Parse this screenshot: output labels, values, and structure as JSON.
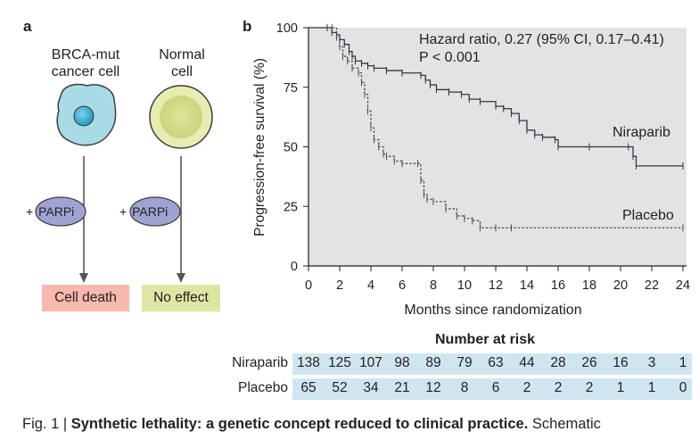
{
  "panel_a": {
    "letter": "a",
    "cells": [
      {
        "label_line1": "BRCA-mut",
        "label_line2": "cancer cell"
      },
      {
        "label_line1": "Normal",
        "label_line2": "cell"
      }
    ],
    "drug_prefix": "+",
    "drug": "PARPi",
    "outcomes": [
      "Cell death",
      "No effect"
    ],
    "colors": {
      "cancer_cell": "#a9dbe5",
      "normal_cell": "#e8ecb0",
      "drug": "#9fa3d3",
      "death": "#f7b9ae",
      "no_effect": "#dfe6a3"
    }
  },
  "panel_b": {
    "letter": "b",
    "annotation_line1": "Hazard ratio, 0.27 (95% CI, 0.17–0.41)",
    "annotation_line2": "P < 0.001"
  },
  "chart_data": {
    "type": "line",
    "xlabel": "Months since randomization",
    "ylabel": "Progression-free survival (%)",
    "xlim": [
      0,
      24
    ],
    "ylim": [
      0,
      100
    ],
    "xticks": [
      0,
      2,
      4,
      6,
      8,
      10,
      12,
      14,
      16,
      18,
      20,
      22,
      24
    ],
    "yticks": [
      0,
      25,
      50,
      75,
      100
    ],
    "background": "#e3e3e3",
    "series": [
      {
        "name": "Niraparib",
        "style": "solid",
        "points": [
          [
            0,
            100
          ],
          [
            1.2,
            100
          ],
          [
            1.5,
            98
          ],
          [
            1.8,
            97
          ],
          [
            2,
            95
          ],
          [
            2.3,
            93
          ],
          [
            2.6,
            90
          ],
          [
            2.8,
            88
          ],
          [
            3,
            86
          ],
          [
            3.4,
            85
          ],
          [
            3.8,
            84
          ],
          [
            4.2,
            83
          ],
          [
            5,
            82
          ],
          [
            6,
            81
          ],
          [
            7.2,
            80
          ],
          [
            7.5,
            78
          ],
          [
            7.8,
            76
          ],
          [
            8.2,
            74
          ],
          [
            9,
            73
          ],
          [
            9.8,
            72
          ],
          [
            10.3,
            70
          ],
          [
            11,
            69
          ],
          [
            12,
            67
          ],
          [
            12.5,
            66
          ],
          [
            13,
            64
          ],
          [
            13.5,
            61
          ],
          [
            14,
            57
          ],
          [
            14.5,
            55
          ],
          [
            15,
            54
          ],
          [
            15.8,
            53
          ],
          [
            16,
            50
          ],
          [
            18,
            50
          ],
          [
            20.5,
            50
          ],
          [
            20.8,
            46
          ],
          [
            21,
            42
          ],
          [
            24,
            42
          ]
        ]
      },
      {
        "name": "Placebo",
        "style": "dashed",
        "points": [
          [
            0,
            100
          ],
          [
            1.5,
            100
          ],
          [
            1.8,
            96
          ],
          [
            2,
            92
          ],
          [
            2.2,
            88
          ],
          [
            2.5,
            86
          ],
          [
            2.8,
            83
          ],
          [
            3.2,
            81
          ],
          [
            3.4,
            77
          ],
          [
            3.6,
            72
          ],
          [
            3.8,
            65
          ],
          [
            4,
            58
          ],
          [
            4.2,
            53
          ],
          [
            4.5,
            50
          ],
          [
            4.8,
            47
          ],
          [
            5,
            46
          ],
          [
            5.5,
            44
          ],
          [
            6,
            43
          ],
          [
            7,
            43
          ],
          [
            7.2,
            36
          ],
          [
            7.4,
            30
          ],
          [
            7.6,
            28
          ],
          [
            8,
            27
          ],
          [
            8.8,
            24
          ],
          [
            9.5,
            21
          ],
          [
            10,
            20
          ],
          [
            10.5,
            19
          ],
          [
            11,
            16
          ],
          [
            12,
            16
          ],
          [
            13,
            16
          ],
          [
            24,
            16
          ]
        ]
      }
    ],
    "number_at_risk": {
      "title": "Number at risk",
      "times": [
        0,
        2,
        4,
        6,
        8,
        10,
        12,
        14,
        16,
        18,
        20,
        22,
        24
      ],
      "rows": [
        {
          "name": "Niraparib",
          "values": [
            138,
            125,
            107,
            98,
            89,
            79,
            63,
            44,
            28,
            26,
            16,
            3,
            1
          ]
        },
        {
          "name": "Placebo",
          "values": [
            65,
            52,
            34,
            21,
            12,
            8,
            6,
            2,
            2,
            2,
            1,
            1,
            0
          ]
        }
      ]
    }
  },
  "caption": {
    "prefix": "Fig. 1 | ",
    "bold": "Synthetic lethality: a genetic concept reduced to clinical practice.",
    "rest": " Schematic"
  }
}
